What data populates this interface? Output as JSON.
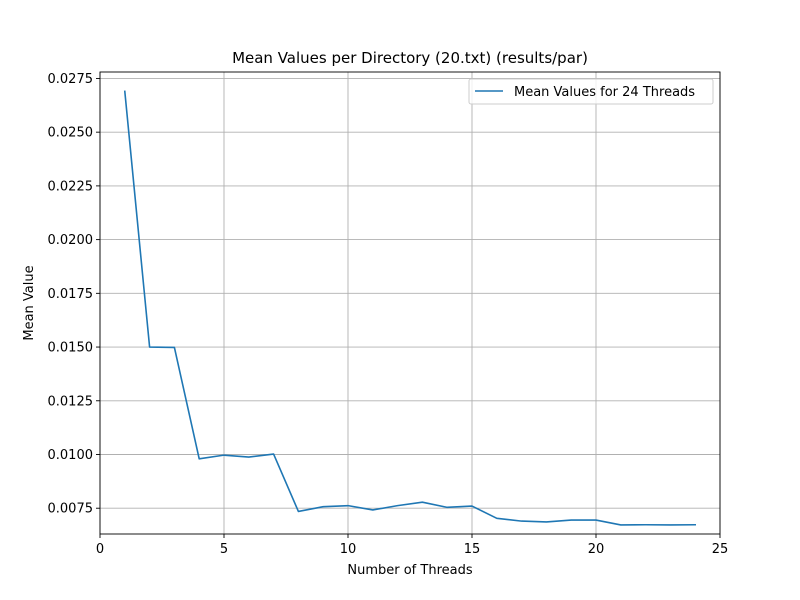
{
  "chart_data": {
    "type": "line",
    "title": "Mean Values per Directory (20.txt) (results/par)",
    "xlabel": "Number of Threads",
    "ylabel": "Mean Value",
    "xlim": [
      0,
      25
    ],
    "ylim": [
      0.0063,
      0.0278
    ],
    "x_ticks": [
      0,
      5,
      10,
      15,
      20,
      25
    ],
    "x_tick_labels": [
      "0",
      "5",
      "10",
      "15",
      "20",
      "25"
    ],
    "y_ticks": [
      0.0075,
      0.01,
      0.0125,
      0.015,
      0.0175,
      0.02,
      0.0225,
      0.025,
      0.0275
    ],
    "y_tick_labels": [
      "0.0075",
      "0.0100",
      "0.0125",
      "0.0150",
      "0.0175",
      "0.0200",
      "0.0225",
      "0.0250",
      "0.0275"
    ],
    "grid": true,
    "legend_position": "upper right",
    "series": [
      {
        "name": "Mean Values for 24 Threads",
        "color": "#1f77b4",
        "x": [
          1,
          2,
          3,
          4,
          5,
          6,
          7,
          8,
          9,
          10,
          11,
          12,
          13,
          14,
          15,
          16,
          17,
          18,
          19,
          20,
          21,
          22,
          23,
          24
        ],
        "values": [
          0.0269,
          0.015,
          0.01498,
          0.0098,
          0.00997,
          0.00988,
          0.01002,
          0.00735,
          0.00757,
          0.00762,
          0.00742,
          0.00762,
          0.00778,
          0.00754,
          0.0076,
          0.00703,
          0.0069,
          0.00686,
          0.00695,
          0.00695,
          0.00672,
          0.00673,
          0.00672,
          0.00673
        ]
      }
    ]
  }
}
